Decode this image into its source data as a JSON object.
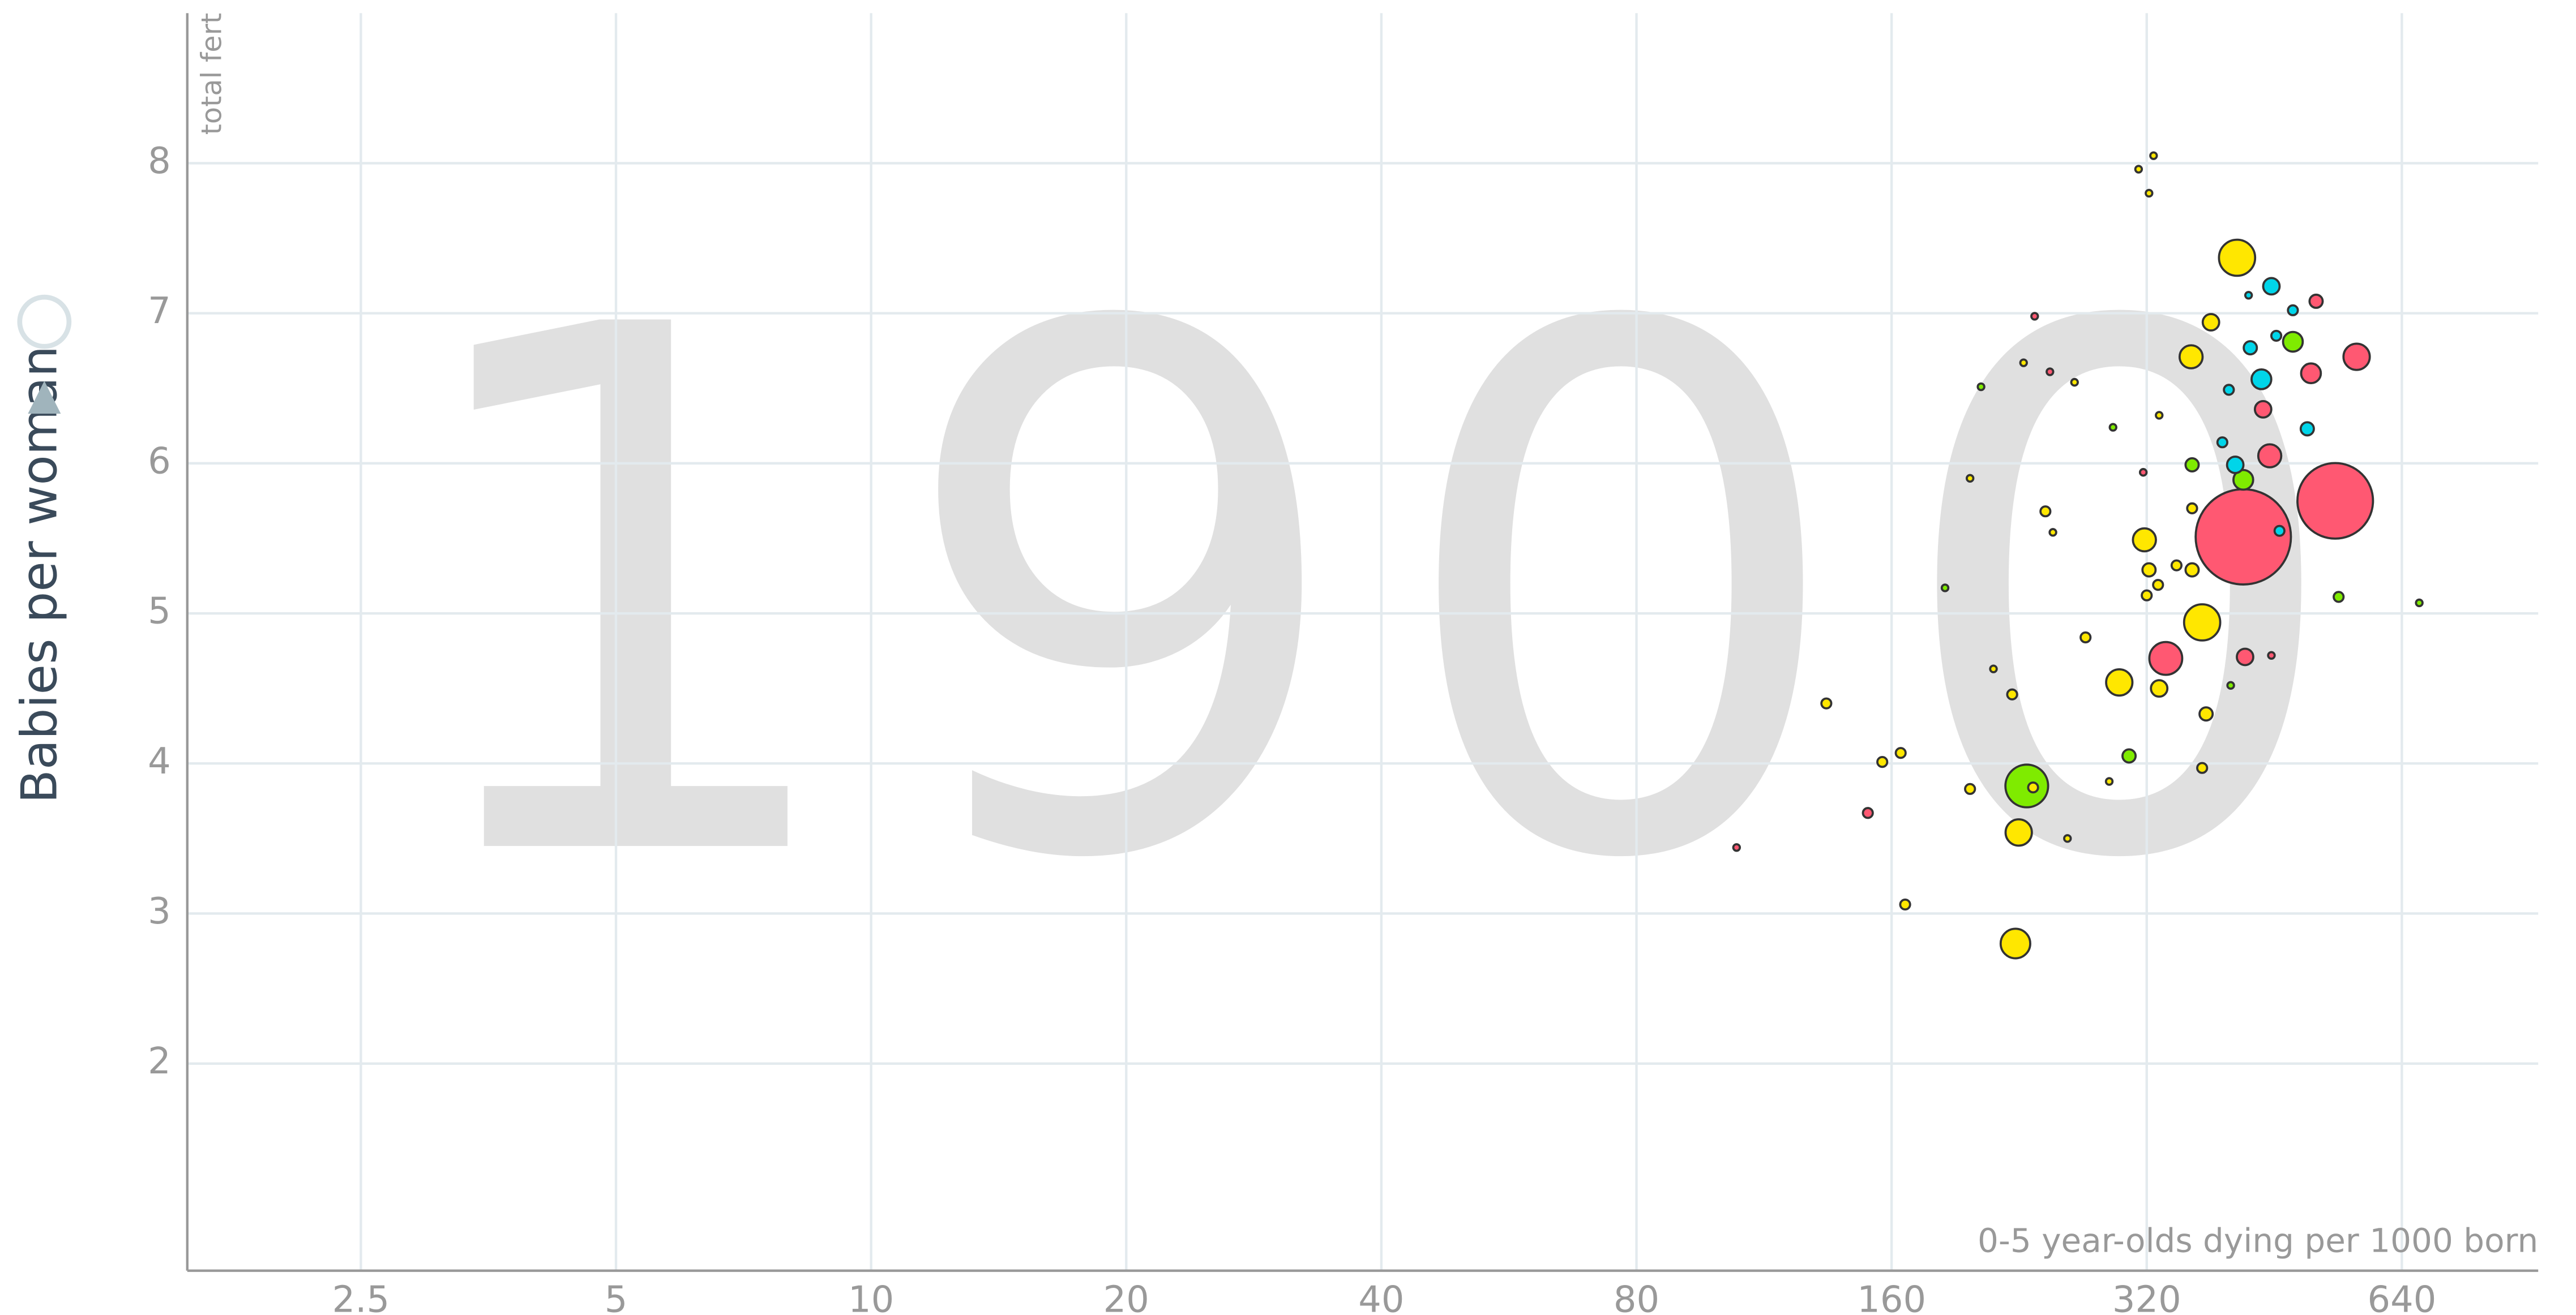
{
  "chart_data": {
    "type": "scatter",
    "year": "1900",
    "y_label": "Babies per woman",
    "y_label_short": "total fert",
    "x_label": "0-5 year-olds dying per 1000 born",
    "xscale": "log",
    "grid": true,
    "xlim": [
      1.56,
      927
    ],
    "ylim": [
      0.62,
      9.0
    ],
    "xticks": [
      2.5,
      5,
      10,
      20,
      40,
      80,
      160,
      320,
      640
    ],
    "yticks": [
      2,
      3,
      4,
      5,
      6,
      7,
      8
    ],
    "x": [
      326,
      313,
      322,
      409,
      449,
      507,
      381,
      476,
      566,
      361,
      500,
      437,
      236,
      229,
      204,
      331,
      439,
      292,
      495,
      447,
      362,
      416,
      534,
      416,
      318,
      243,
      198,
      322,
      362,
      185,
      372,
      539,
      671,
      337,
      418,
      297,
      331,
      222,
      134,
      376,
      164,
      156,
      305,
      372,
      231,
      235,
      198,
      150,
      226,
      258,
      105,
      166,
      224,
      271,
      211,
      449,
      402,
      400,
      476,
      422,
      455,
      424,
      393,
      407,
      459,
      362,
      347,
      317,
      263,
      246,
      248,
      330,
      320,
      289
    ],
    "y": [
      8.05,
      7.96,
      7.8,
      7.37,
      7.18,
      7.08,
      6.94,
      6.81,
      6.71,
      6.71,
      6.6,
      6.56,
      6.98,
      6.67,
      6.51,
      6.32,
      6.36,
      6.24,
      6.23,
      6.05,
      5.99,
      5.89,
      5.75,
      5.51,
      5.49,
      5.68,
      5.9,
      5.29,
      5.29,
      5.17,
      4.94,
      5.11,
      5.07,
      4.7,
      4.71,
      4.54,
      4.5,
      4.46,
      4.4,
      4.33,
      4.07,
      4.01,
      4.05,
      3.97,
      3.85,
      3.84,
      3.83,
      3.67,
      3.54,
      3.5,
      3.44,
      3.06,
      2.8,
      4.84,
      4.63,
      4.72,
      4.52,
      6.49,
      7.02,
      7.12,
      6.85,
      6.77,
      6.14,
      5.99,
      5.55,
      5.7,
      5.32,
      5.94,
      6.54,
      6.61,
      5.54,
      5.19,
      5.12,
      3.88
    ],
    "sizes": [
      2,
      2,
      2,
      11,
      5,
      4,
      5,
      6,
      8,
      7,
      6,
      6,
      2,
      2,
      2,
      2,
      5,
      2,
      4,
      7,
      4,
      6,
      23,
      29,
      7,
      3,
      2,
      4,
      4,
      2,
      11,
      3,
      2,
      10,
      5,
      8,
      5,
      3,
      3,
      4,
      3,
      3,
      4,
      3,
      13,
      3,
      3,
      3,
      8,
      2,
      2,
      3,
      9,
      3,
      2,
      2,
      2,
      3,
      3,
      2,
      3,
      4,
      3,
      5,
      3,
      3,
      3,
      2,
      2,
      2,
      2,
      3,
      3,
      2
    ],
    "colors": [
      "#ffe700",
      "#ffe700",
      "#ffe700",
      "#ffe700",
      "#00d5e9",
      "#ff5872",
      "#ffe700",
      "#7feb00",
      "#ff5872",
      "#ffe700",
      "#ff5872",
      "#00d5e9",
      "#ff5872",
      "#ffe700",
      "#7feb00",
      "#ffe700",
      "#ff5872",
      "#7feb00",
      "#00d5e9",
      "#ff5872",
      "#7feb00",
      "#7feb00",
      "#ff5872",
      "#ff5872",
      "#ffe700",
      "#ffe700",
      "#ffe700",
      "#ffe700",
      "#ffe700",
      "#7feb00",
      "#ffe700",
      "#7feb00",
      "#7feb00",
      "#ff5872",
      "#ff5872",
      "#ffe700",
      "#ffe700",
      "#ffe700",
      "#ffe700",
      "#ffe700",
      "#ffe700",
      "#ffe700",
      "#7feb00",
      "#ffe700",
      "#7feb00",
      "#ffe700",
      "#ffe700",
      "#ff5872",
      "#ffe700",
      "#ffe700",
      "#ff5872",
      "#ffe700",
      "#ffe700",
      "#ffe700",
      "#ffe700",
      "#ff5872",
      "#7feb00",
      "#00d5e9",
      "#00d5e9",
      "#00d5e9",
      "#00d5e9",
      "#00d5e9",
      "#00d5e9",
      "#00d5e9",
      "#00d5e9",
      "#ffe700",
      "#ffe700",
      "#ff5872",
      "#ffe700",
      "#ff5872",
      "#ffe700",
      "#ffe700",
      "#ffe700",
      "#ffe700"
    ]
  }
}
